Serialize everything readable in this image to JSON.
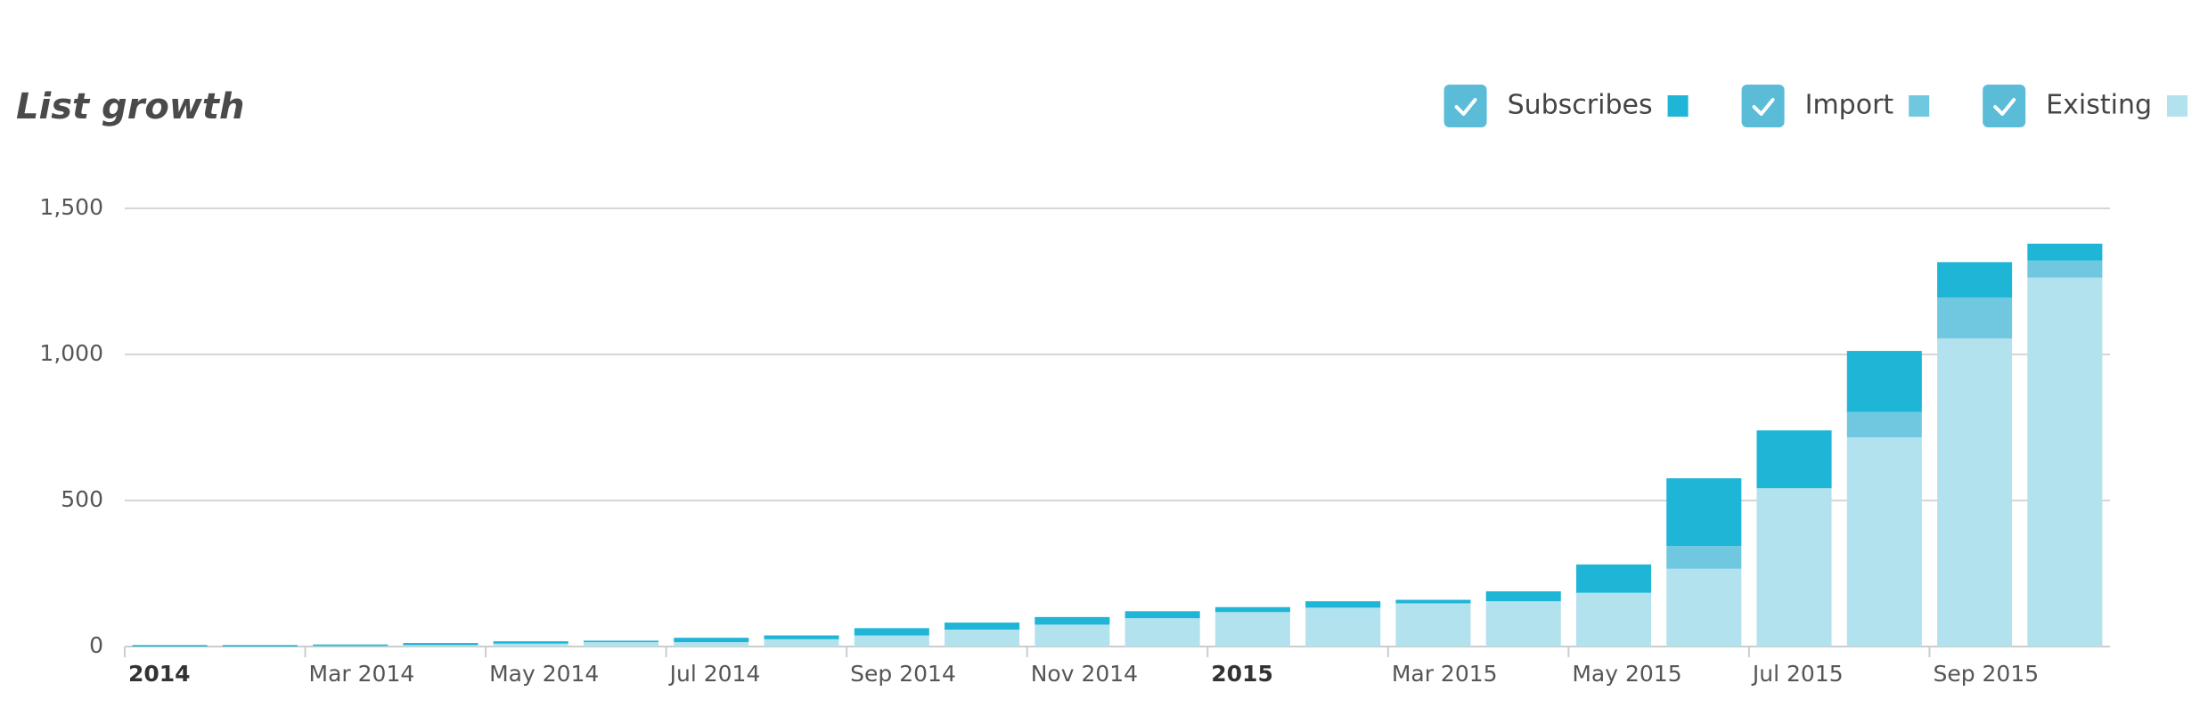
{
  "chart_data": {
    "type": "stacked_bar",
    "title": "List growth",
    "categories": [
      "2014",
      null,
      "Mar 2014",
      null,
      "May 2014",
      null,
      "Jul 2014",
      null,
      "Sep 2014",
      null,
      "Nov 2014",
      null,
      "2015",
      null,
      "Mar 2015",
      null,
      "May 2015",
      null,
      "Jul 2015",
      null,
      "Sep 2015",
      null
    ],
    "series": [
      {
        "name": "Subscribes",
        "color": "#1fb5d6",
        "values": [
          5,
          5,
          5,
          7,
          8,
          5,
          15,
          13,
          25,
          24,
          26,
          24,
          17,
          22,
          12,
          34,
          97,
          232,
          198,
          209,
          121,
          58
        ]
      },
      {
        "name": "Import",
        "color": "#6fc8e0",
        "values": [
          0,
          0,
          0,
          0,
          0,
          0,
          0,
          0,
          0,
          0,
          0,
          0,
          0,
          0,
          0,
          0,
          0,
          78,
          0,
          87,
          140,
          58
        ]
      },
      {
        "name": "Existing",
        "color": "#b2e2ee",
        "values": [
          0,
          0,
          2,
          5,
          10,
          15,
          15,
          25,
          38,
          58,
          75,
          97,
          118,
          133,
          148,
          155,
          184,
          266,
          542,
          716,
          1055,
          1263
        ]
      }
    ],
    "ylim": [
      0,
      1500
    ],
    "yticks": [
      0,
      500,
      {
        "value": 1000,
        "label": "1,000"
      },
      {
        "value": 1500,
        "label": "1,500"
      }
    ],
    "grid": true,
    "legend": "top-right"
  }
}
